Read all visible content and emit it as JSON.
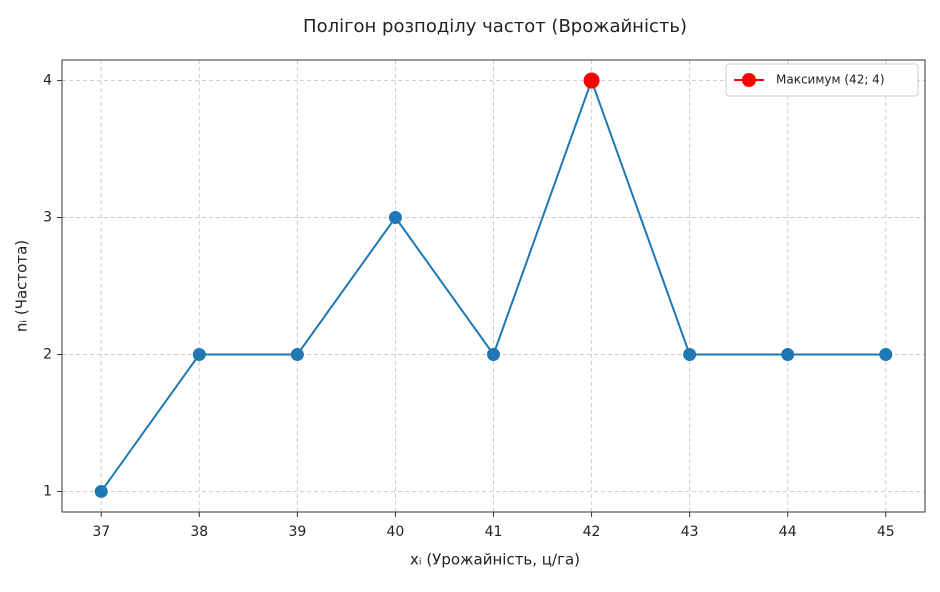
{
  "chart_data": {
    "type": "line",
    "title": "Полігон розподілу частот (Врожайність)",
    "xlabel": "xᵢ (Урожайність, ц/га)",
    "ylabel": "nᵢ (Частота)",
    "series": [
      {
        "color": "#1f77b4",
        "x": [
          37,
          38,
          39,
          40,
          41,
          42,
          43,
          44,
          45
        ],
        "values": [
          1,
          2,
          2,
          3,
          2,
          4,
          2,
          2,
          2
        ]
      },
      {
        "name": "Максимум (42; 4)",
        "color": "#ff0000",
        "x": [
          42
        ],
        "values": [
          4
        ]
      }
    ],
    "xlim": [
      36.6,
      45.4
    ],
    "xticks": [
      37,
      38,
      39,
      40,
      41,
      42,
      43,
      44,
      45
    ],
    "ylim": [
      0.85,
      4.15
    ],
    "yticks": [
      1,
      2,
      3,
      4
    ],
    "grid": true,
    "legend": "upper right"
  }
}
